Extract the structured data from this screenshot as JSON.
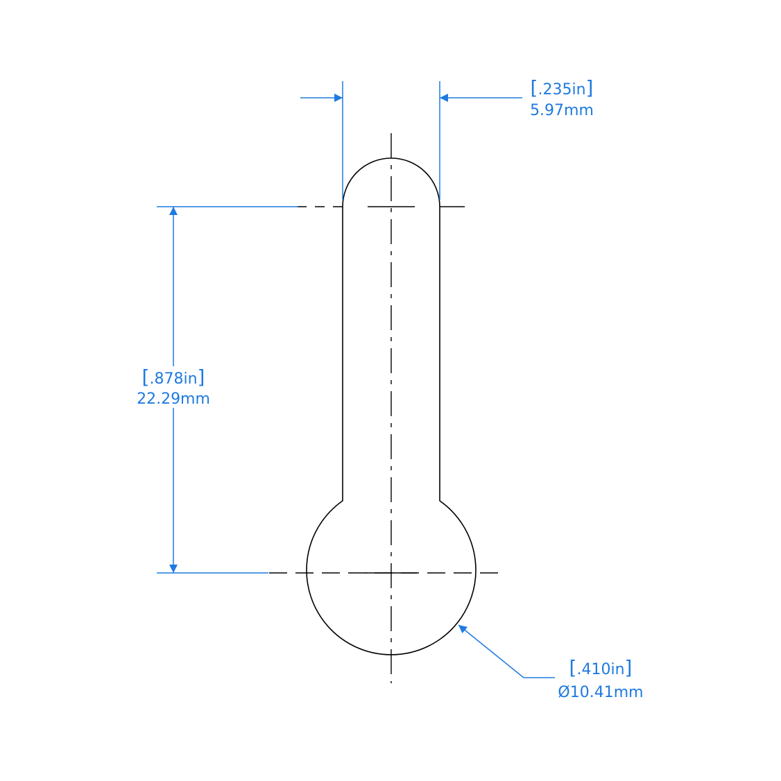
{
  "colors": {
    "outline": "#000000",
    "dimension": "#1f7ae0",
    "background": "#ffffff"
  },
  "dimensions": {
    "width": {
      "inches": ".235in",
      "metric": "5.97mm"
    },
    "center_distance": {
      "inches": ".878in",
      "metric": "22.29mm"
    },
    "diameter": {
      "inches": ".410in",
      "symbol": "Ø",
      "metric": "10.41mm"
    }
  }
}
